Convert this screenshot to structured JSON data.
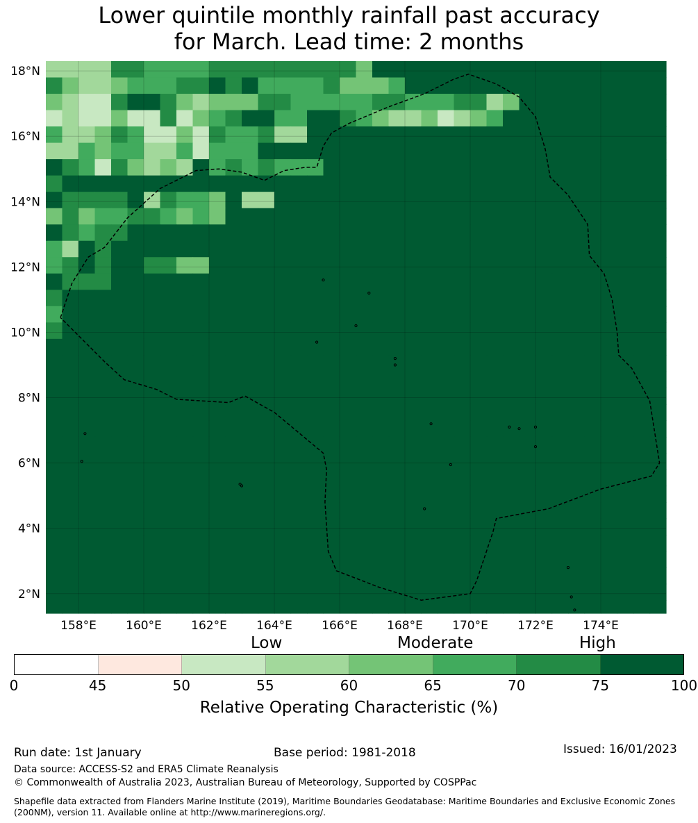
{
  "title": {
    "line1": "Lower quintile monthly rainfall past accuracy",
    "line2": "for March. Lead time: 2 months"
  },
  "map": {
    "lon_range": [
      157.0,
      176.0
    ],
    "lat_range": [
      1.4,
      18.3
    ],
    "grid_resolution_deg": 0.5,
    "lat_ticks": [
      {
        "value": 18,
        "label": "18°N"
      },
      {
        "value": 16,
        "label": "16°N"
      },
      {
        "value": 14,
        "label": "14°N"
      },
      {
        "value": 12,
        "label": "12°N"
      },
      {
        "value": 10,
        "label": "10°N"
      },
      {
        "value": 8,
        "label": "8°N"
      },
      {
        "value": 6,
        "label": "6°N"
      },
      {
        "value": 4,
        "label": "4°N"
      },
      {
        "value": 2,
        "label": "2°N"
      }
    ],
    "lon_ticks": [
      {
        "value": 158,
        "label": "158°E"
      },
      {
        "value": 160,
        "label": "160°E"
      },
      {
        "value": 162,
        "label": "162°E"
      },
      {
        "value": 164,
        "label": "164°E"
      },
      {
        "value": 166,
        "label": "166°E"
      },
      {
        "value": 168,
        "label": "168°E"
      },
      {
        "value": 170,
        "label": "170°E"
      },
      {
        "value": 172,
        "label": "172°E"
      },
      {
        "value": 174,
        "label": "174°E"
      }
    ],
    "grid_rows_north_to_south": [
      "33336655556666666664A77",
      "6433455566767555564445",
      "43226776434446655555665556634",
      "2322422624567755776543342345",
      "5334652242655633",
      "3354553352555",
      "76526434375656555",
      "6",
      "76666736554733",
      "464556654547",
      "76566",
      "5376",
      "5676776644",
      "7666",
      "6",
      "5",
      "6",
      "",
      "",
      "",
      "",
      "",
      "",
      "",
      "",
      "",
      "",
      "",
      "",
      "",
      "",
      "",
      "",
      ""
    ],
    "eez_boundary_lonlat": [
      [
        157.45,
        10.45
      ],
      [
        157.8,
        11.5
      ],
      [
        158.3,
        12.3
      ],
      [
        158.8,
        12.6
      ],
      [
        159.5,
        13.5
      ],
      [
        160.5,
        14.4
      ],
      [
        161.6,
        14.95
      ],
      [
        162.3,
        15.0
      ],
      [
        163.0,
        14.9
      ],
      [
        163.7,
        14.65
      ],
      [
        164.3,
        14.95
      ],
      [
        164.95,
        15.05
      ],
      [
        165.3,
        15.05
      ],
      [
        165.5,
        15.7
      ],
      [
        165.75,
        16.1
      ],
      [
        166.3,
        16.4
      ],
      [
        167.5,
        16.9
      ],
      [
        168.6,
        17.3
      ],
      [
        169.5,
        17.75
      ],
      [
        169.95,
        17.9
      ],
      [
        170.8,
        17.6
      ],
      [
        171.5,
        17.2
      ],
      [
        172.0,
        16.6
      ],
      [
        172.3,
        15.6
      ],
      [
        172.45,
        14.75
      ],
      [
        173.0,
        14.2
      ],
      [
        173.6,
        13.3
      ],
      [
        173.65,
        12.35
      ],
      [
        174.1,
        11.8
      ],
      [
        174.35,
        11.0
      ],
      [
        174.5,
        10.0
      ],
      [
        174.55,
        9.3
      ],
      [
        174.95,
        8.9
      ],
      [
        175.5,
        7.9
      ],
      [
        175.8,
        6.0
      ],
      [
        175.55,
        5.6
      ],
      [
        174.0,
        5.2
      ],
      [
        172.4,
        4.6
      ],
      [
        170.8,
        4.3
      ],
      [
        170.7,
        3.9
      ],
      [
        170.2,
        2.4
      ],
      [
        170.0,
        2.0
      ],
      [
        168.5,
        1.8
      ],
      [
        167.2,
        2.2
      ],
      [
        165.9,
        2.7
      ],
      [
        165.65,
        3.3
      ],
      [
        165.55,
        4.8
      ],
      [
        165.6,
        5.8
      ],
      [
        165.5,
        6.3
      ],
      [
        164.0,
        7.55
      ],
      [
        163.1,
        8.05
      ],
      [
        162.6,
        7.85
      ],
      [
        161.0,
        7.95
      ],
      [
        160.4,
        8.25
      ],
      [
        159.4,
        8.55
      ],
      [
        158.8,
        9.1
      ],
      [
        158.1,
        9.8
      ],
      [
        157.45,
        10.45
      ]
    ],
    "land_markers_lonlat": [
      [
        158.2,
        6.9
      ],
      [
        163.0,
        5.3
      ],
      [
        162.95,
        5.35
      ],
      [
        167.7,
        9.0
      ],
      [
        168.8,
        7.2
      ],
      [
        169.4,
        5.95
      ],
      [
        171.2,
        7.1
      ],
      [
        171.5,
        7.05
      ],
      [
        172.0,
        7.1
      ],
      [
        173.0,
        2.8
      ],
      [
        173.1,
        1.9
      ],
      [
        173.2,
        1.5
      ],
      [
        168.6,
        4.6
      ],
      [
        165.5,
        11.6
      ],
      [
        166.9,
        11.2
      ],
      [
        167.7,
        9.2
      ],
      [
        172.0,
        6.5
      ],
      [
        158.1,
        6.05
      ],
      [
        165.3,
        9.7
      ],
      [
        166.5,
        10.2
      ]
    ]
  },
  "legend": {
    "categories": {
      "low": "Low",
      "moderate": "Moderate",
      "high": "High"
    },
    "colors": [
      "#ffffff",
      "#fee8df",
      "#c8e8c2",
      "#a2d89b",
      "#74c476",
      "#41ab5d",
      "#238b45",
      "#005a32"
    ],
    "ticks": [
      "0",
      "45",
      "50",
      "55",
      "60",
      "65",
      "70",
      "75",
      "100"
    ],
    "label": "Relative Operating Characteristic (%)"
  },
  "footer": {
    "run_date": "Run date: 1st January",
    "base_period": "Base period: 1981-2018",
    "issued": "Issued: 16/01/2023",
    "data_source": "Data source: ACCESS-S2 and ERA5 Climate Reanalysis",
    "copyright": "© Commonwealth of Australia 2023, Australian Bureau of Meteorology, Supported by COSPPac",
    "shapefile": "Shapefile data extracted from Flanders Marine Institute (2019), Maritime Boundaries Geodatabase: Maritime Boundaries and Exclusive Economic Zones (200NM), version 11. Available online at http://www.marineregions.org/."
  }
}
